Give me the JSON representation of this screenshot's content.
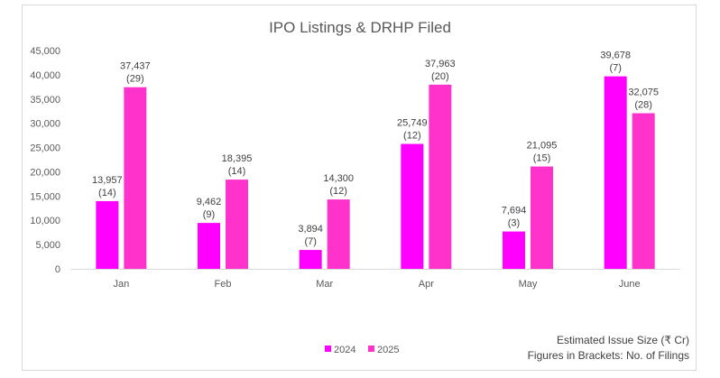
{
  "chart_data": {
    "type": "bar",
    "title": "IPO Listings & DRHP Filed",
    "categories": [
      "Jan",
      "Feb",
      "Mar",
      "Apr",
      "May",
      "June"
    ],
    "series": [
      {
        "name": "2024",
        "color": "#ff00ff",
        "values": [
          13957,
          9462,
          3894,
          25749,
          7694,
          39678
        ],
        "filings": [
          14,
          9,
          7,
          12,
          3,
          7
        ]
      },
      {
        "name": "2025",
        "color": "#ff33cc",
        "values": [
          37437,
          18395,
          14300,
          37963,
          21095,
          32075
        ],
        "filings": [
          29,
          14,
          12,
          20,
          15,
          28
        ]
      }
    ],
    "ylim": [
      0,
      45000
    ],
    "yticks": [
      "0",
      "5,000",
      "10,000",
      "15,000",
      "20,000",
      "25,000",
      "30,000",
      "35,000",
      "40,000",
      "45,000"
    ],
    "grid": false,
    "legend_position": "bottom",
    "notes": [
      "Estimated Issue Size (₹ Cr)",
      "Figures in Brackets: No. of Filings"
    ]
  }
}
